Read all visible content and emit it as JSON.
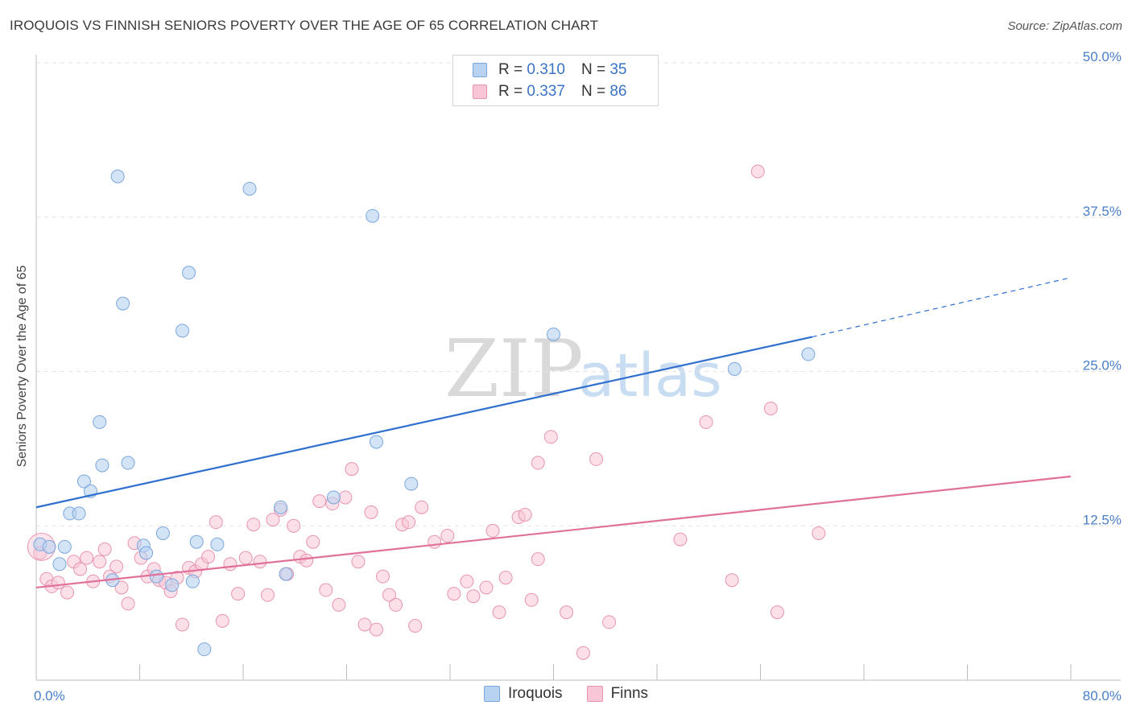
{
  "header": {
    "title": "IROQUOIS VS FINNISH SENIORS POVERTY OVER THE AGE OF 65 CORRELATION CHART",
    "source": "Source: ZipAtlas.com"
  },
  "watermark": {
    "zip": "ZIP",
    "atlas": "atlas"
  },
  "legend": {
    "rows": [
      {
        "r_label": "R =",
        "r_value": "0.310",
        "n_label": "N =",
        "n_value": "35"
      },
      {
        "r_label": "R =",
        "r_value": "0.337",
        "n_label": "N =",
        "n_value": "86"
      }
    ]
  },
  "chart_data": {
    "type": "scatter",
    "title": "IROQUOIS VS FINNISH SENIORS POVERTY OVER THE AGE OF 65 CORRELATION CHART",
    "xlabel": "",
    "ylabel": "Seniors Poverty Over the Age of 65",
    "xlim": [
      0,
      80
    ],
    "ylim": [
      0,
      50
    ],
    "x_tick_labels": [
      {
        "value": 0,
        "label": "0.0%"
      },
      {
        "value": 80,
        "label": "80.0%"
      }
    ],
    "y_tick_labels": [
      {
        "value": 12.5,
        "label": "12.5%"
      },
      {
        "value": 25,
        "label": "25.0%"
      },
      {
        "value": 37.5,
        "label": "37.5%"
      },
      {
        "value": 50,
        "label": "50.0%"
      }
    ],
    "grid": "horizontal-dashed",
    "legend_position": "top-center",
    "colors": {
      "iroquois_fill": "#b8d2f2",
      "iroquois_stroke": "#7aa6dc",
      "iroquois_line": "#2f6fce",
      "finns_fill": "#f8c6d6",
      "finns_stroke": "#e894b2",
      "finns_line": "#e0719a",
      "tick_label": "#4a7fc8"
    },
    "series": [
      {
        "name": "Iroquois",
        "r": 0.31,
        "n": 35,
        "trend": {
          "x0": 0,
          "y0": 14.0,
          "x1": 60,
          "y1": 27.8,
          "dash_to_x": 80,
          "dash_to_y": 32.6
        },
        "points": [
          [
            0.3,
            11.0
          ],
          [
            1.0,
            10.8
          ],
          [
            1.8,
            9.4
          ],
          [
            2.2,
            10.8
          ],
          [
            2.6,
            13.5
          ],
          [
            3.3,
            13.5
          ],
          [
            3.7,
            16.1
          ],
          [
            4.2,
            15.3
          ],
          [
            4.9,
            20.9
          ],
          [
            5.1,
            17.4
          ],
          [
            5.9,
            8.1
          ],
          [
            6.3,
            40.8
          ],
          [
            6.7,
            30.5
          ],
          [
            7.1,
            17.6
          ],
          [
            8.3,
            10.9
          ],
          [
            8.5,
            10.3
          ],
          [
            9.3,
            8.4
          ],
          [
            9.8,
            11.9
          ],
          [
            10.5,
            7.7
          ],
          [
            11.3,
            28.3
          ],
          [
            11.8,
            33.0
          ],
          [
            12.1,
            8.0
          ],
          [
            12.4,
            11.2
          ],
          [
            13.0,
            2.5
          ],
          [
            14.0,
            11.0
          ],
          [
            16.5,
            39.8
          ],
          [
            18.9,
            14.0
          ],
          [
            19.3,
            8.6
          ],
          [
            23.0,
            14.8
          ],
          [
            26.0,
            37.6
          ],
          [
            26.3,
            19.3
          ],
          [
            29.0,
            15.9
          ],
          [
            40.0,
            28.0
          ],
          [
            54.0,
            25.2
          ],
          [
            59.7,
            26.4
          ]
        ]
      },
      {
        "name": "Finns",
        "r": 0.337,
        "n": 86,
        "trend": {
          "x0": 0,
          "y0": 7.5,
          "x1": 80,
          "y1": 16.5
        },
        "points": [
          [
            0.3,
            10.3
          ],
          [
            0.8,
            8.2
          ],
          [
            1.2,
            7.6
          ],
          [
            1.7,
            7.9
          ],
          [
            2.4,
            7.1
          ],
          [
            2.9,
            9.6
          ],
          [
            3.4,
            9.0
          ],
          [
            3.9,
            9.9
          ],
          [
            4.4,
            8.0
          ],
          [
            4.9,
            9.6
          ],
          [
            5.3,
            10.6
          ],
          [
            5.7,
            8.4
          ],
          [
            6.2,
            9.2
          ],
          [
            6.6,
            7.5
          ],
          [
            7.1,
            6.2
          ],
          [
            7.6,
            11.1
          ],
          [
            8.1,
            9.9
          ],
          [
            8.6,
            8.4
          ],
          [
            9.1,
            9.0
          ],
          [
            9.5,
            8.1
          ],
          [
            10.0,
            7.9
          ],
          [
            10.4,
            7.2
          ],
          [
            10.9,
            8.3
          ],
          [
            11.3,
            4.5
          ],
          [
            11.8,
            9.1
          ],
          [
            12.3,
            8.8
          ],
          [
            12.8,
            9.4
          ],
          [
            13.3,
            10.0
          ],
          [
            13.9,
            12.8
          ],
          [
            14.4,
            4.8
          ],
          [
            15.0,
            9.4
          ],
          [
            15.6,
            7.0
          ],
          [
            16.2,
            9.9
          ],
          [
            16.8,
            12.6
          ],
          [
            17.3,
            9.6
          ],
          [
            17.9,
            6.9
          ],
          [
            18.3,
            13.0
          ],
          [
            18.9,
            13.8
          ],
          [
            19.4,
            8.6
          ],
          [
            19.9,
            12.5
          ],
          [
            20.4,
            10.0
          ],
          [
            20.9,
            9.7
          ],
          [
            21.4,
            11.2
          ],
          [
            21.9,
            14.5
          ],
          [
            22.4,
            7.3
          ],
          [
            22.9,
            14.3
          ],
          [
            23.4,
            6.1
          ],
          [
            23.9,
            14.8
          ],
          [
            24.4,
            17.1
          ],
          [
            24.9,
            9.6
          ],
          [
            25.4,
            4.5
          ],
          [
            25.9,
            13.6
          ],
          [
            26.3,
            4.1
          ],
          [
            26.8,
            8.4
          ],
          [
            27.3,
            6.9
          ],
          [
            27.8,
            6.1
          ],
          [
            28.3,
            12.6
          ],
          [
            28.8,
            12.8
          ],
          [
            29.3,
            4.4
          ],
          [
            29.8,
            14.0
          ],
          [
            30.8,
            11.2
          ],
          [
            31.8,
            11.7
          ],
          [
            32.3,
            7.0
          ],
          [
            33.3,
            8.0
          ],
          [
            33.8,
            6.8
          ],
          [
            34.8,
            7.5
          ],
          [
            35.3,
            12.1
          ],
          [
            35.8,
            5.5
          ],
          [
            36.3,
            8.3
          ],
          [
            37.3,
            13.2
          ],
          [
            37.8,
            13.4
          ],
          [
            38.3,
            6.5
          ],
          [
            38.8,
            9.8
          ],
          [
            38.8,
            17.6
          ],
          [
            39.8,
            19.7
          ],
          [
            41.0,
            5.5
          ],
          [
            42.3,
            2.2
          ],
          [
            43.3,
            17.9
          ],
          [
            44.3,
            4.7
          ],
          [
            49.8,
            11.4
          ],
          [
            51.8,
            20.9
          ],
          [
            53.8,
            8.1
          ],
          [
            55.8,
            41.2
          ],
          [
            56.8,
            22.0
          ],
          [
            57.3,
            5.5
          ],
          [
            60.5,
            11.9
          ]
        ]
      }
    ]
  },
  "bottom_legend": {
    "items": [
      {
        "label": "Iroquois"
      },
      {
        "label": "Finns"
      }
    ]
  }
}
